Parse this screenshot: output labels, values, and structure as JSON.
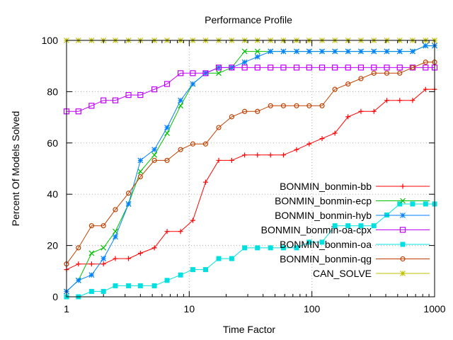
{
  "chart_data": {
    "type": "line",
    "title": "Performance Profile",
    "xlabel": "Time Factor",
    "ylabel": "Percent Of Models Solved",
    "xscale": "log",
    "xlim": [
      1,
      1000
    ],
    "ylim": [
      0,
      100
    ],
    "x_ticks": [
      1,
      10,
      100,
      1000
    ],
    "x_tick_labels": [
      "1",
      "10",
      "100",
      "1000"
    ],
    "y_ticks": [
      0,
      20,
      40,
      60,
      80,
      100
    ],
    "y_tick_labels": [
      "0",
      "20",
      "40",
      "60",
      "80",
      "100"
    ],
    "grid": true,
    "legend_position": "bottom-right",
    "series": [
      {
        "name": "BONMIN_bonmin-bb",
        "color": "#ff0000",
        "marker": "plus",
        "x": [
          1,
          1.25,
          1.6,
          2,
          2.5,
          3.2,
          4,
          5.2,
          6.6,
          8.5,
          10.7,
          13.6,
          17.4,
          22.2,
          28.3,
          36,
          46,
          58.6,
          75,
          95,
          121,
          154,
          197,
          251,
          320,
          408,
          520,
          662,
          845,
          1000
        ],
        "y": [
          10.6,
          12.8,
          12.8,
          12.8,
          14.9,
          14.9,
          17,
          19.1,
          25.5,
          25.5,
          29.8,
          44.7,
          53.2,
          53.2,
          55.3,
          55.3,
          55.3,
          55.3,
          57.4,
          59.6,
          61.7,
          63.8,
          70.2,
          72.3,
          72.3,
          76.6,
          76.6,
          76.6,
          80.9,
          80.9
        ]
      },
      {
        "name": "BONMIN_bonmin-ecp",
        "color": "#00c000",
        "marker": "cross",
        "x": [
          1,
          1.25,
          1.6,
          2,
          2.5,
          3.2,
          4,
          5.2,
          6.6,
          8.5,
          10.7,
          13.6,
          17.4,
          22.2,
          28.3,
          36,
          46,
          58.6,
          75,
          95,
          121,
          154,
          197,
          251,
          320,
          408,
          520,
          662,
          845,
          1000
        ],
        "y": [
          2.1,
          6.4,
          17,
          19.1,
          25.5,
          36.2,
          48.9,
          55.3,
          63.8,
          74.5,
          83,
          87.2,
          87.2,
          89.4,
          95.7,
          95.7,
          95.7,
          95.7,
          95.7,
          95.7,
          95.7,
          95.7,
          95.7,
          95.7,
          95.7,
          95.7,
          95.7,
          95.7,
          97.9,
          97.9
        ]
      },
      {
        "name": "BONMIN_bonmin-hyb",
        "color": "#0080ff",
        "marker": "star",
        "x": [
          1,
          1.25,
          1.6,
          2,
          2.5,
          3.2,
          4,
          5.2,
          6.6,
          8.5,
          10.7,
          13.6,
          17.4,
          22.2,
          28.3,
          36,
          46,
          58.6,
          75,
          95,
          121,
          154,
          197,
          251,
          320,
          408,
          520,
          662,
          845,
          1000
        ],
        "y": [
          2.1,
          6.4,
          8.5,
          14.9,
          23.4,
          36.2,
          53.2,
          57.4,
          66,
          76.6,
          83,
          87.2,
          89.4,
          89.4,
          91.5,
          93.6,
          95.7,
          95.7,
          95.7,
          95.7,
          95.7,
          95.7,
          95.7,
          95.7,
          95.7,
          95.7,
          95.7,
          95.7,
          97.9,
          97.9
        ]
      },
      {
        "name": "BONMIN_bonmin-oa-cpx",
        "color": "#c000ff",
        "marker": "square-open",
        "x": [
          1,
          1.25,
          1.6,
          2,
          2.5,
          3.2,
          4,
          5.2,
          6.6,
          8.5,
          10.7,
          13.6,
          17.4,
          22.2,
          28.3,
          36,
          46,
          58.6,
          75,
          95,
          121,
          154,
          197,
          251,
          320,
          408,
          520,
          662,
          845,
          1000
        ],
        "y": [
          72.3,
          72.3,
          74.5,
          76.6,
          76.6,
          78.7,
          78.7,
          80.9,
          83,
          87.2,
          87.2,
          87.2,
          89.4,
          89.4,
          89.4,
          89.4,
          89.4,
          89.4,
          89.4,
          89.4,
          89.4,
          89.4,
          89.4,
          89.4,
          89.4,
          89.4,
          89.4,
          89.4,
          89.4,
          89.4
        ]
      },
      {
        "name": "BONMIN_bonmin-oa",
        "color": "#00e0e0",
        "marker": "square-filled",
        "x": [
          1,
          1.25,
          1.6,
          2,
          2.5,
          3.2,
          4,
          5.2,
          6.6,
          8.5,
          10.7,
          13.6,
          17.4,
          22.2,
          28.3,
          36,
          46,
          58.6,
          75,
          95,
          121,
          154,
          197,
          251,
          320,
          408,
          520,
          662,
          845,
          1000
        ],
        "y": [
          0,
          0,
          2.1,
          2.1,
          4.3,
          4.3,
          4.3,
          4.3,
          6.4,
          8.5,
          10.6,
          10.6,
          14.9,
          14.9,
          19.1,
          19.1,
          19.1,
          19.1,
          19.1,
          21.3,
          21.3,
          27.7,
          27.7,
          27.7,
          27.7,
          31.9,
          36.2,
          36.2,
          36.2,
          36.2
        ]
      },
      {
        "name": "BONMIN_bonmin-qg",
        "color": "#c04000",
        "marker": "circle-open",
        "x": [
          1,
          1.25,
          1.6,
          2,
          2.5,
          3.2,
          4,
          5.2,
          6.6,
          8.5,
          10.7,
          13.6,
          17.4,
          22.2,
          28.3,
          36,
          46,
          58.6,
          75,
          95,
          121,
          154,
          197,
          251,
          320,
          408,
          520,
          662,
          845,
          1000
        ],
        "y": [
          12.8,
          19.1,
          27.7,
          27.7,
          34,
          40.4,
          46.8,
          53.2,
          53.2,
          57.4,
          59.6,
          59.6,
          66,
          70.2,
          72.3,
          72.3,
          74.5,
          74.5,
          74.5,
          74.5,
          74.5,
          80.9,
          83,
          85.1,
          87.2,
          87.2,
          87.2,
          89.4,
          91.5,
          91.5
        ]
      },
      {
        "name": "CAN_SOLVE",
        "color": "#c0c000",
        "marker": "asterisk",
        "x": [
          1,
          1.25,
          1.6,
          2,
          2.5,
          3.2,
          4,
          5.2,
          6.6,
          8.5,
          10.7,
          13.6,
          17.4,
          22.2,
          28.3,
          36,
          46,
          58.6,
          75,
          95,
          121,
          154,
          197,
          251,
          320,
          408,
          520,
          662,
          845,
          1000
        ],
        "y": [
          100,
          100,
          100,
          100,
          100,
          100,
          100,
          100,
          100,
          100,
          100,
          100,
          100,
          100,
          100,
          100,
          100,
          100,
          100,
          100,
          100,
          100,
          100,
          100,
          100,
          100,
          100,
          100,
          100,
          100
        ]
      }
    ]
  }
}
